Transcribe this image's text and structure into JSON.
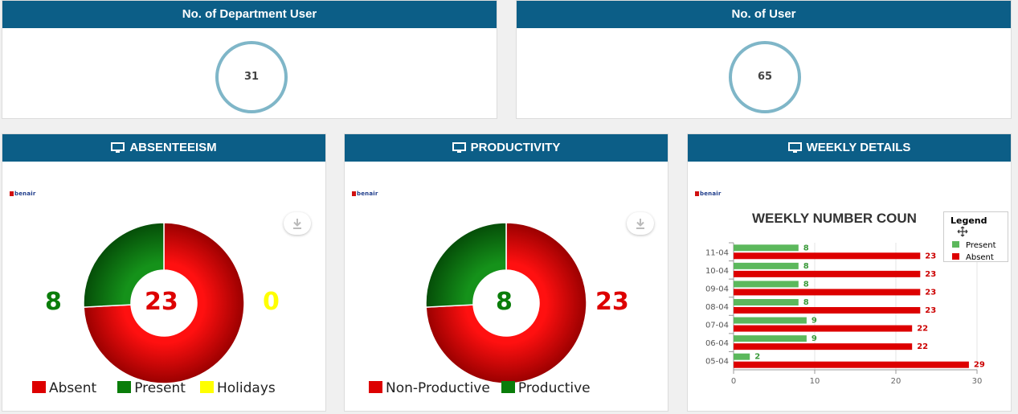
{
  "top_cards": [
    {
      "title": "No. of Department User",
      "value": "31"
    },
    {
      "title": "No. of User",
      "value": "65"
    }
  ],
  "logo_text": "benair",
  "absenteeism": {
    "title": "ABSENTEEISM",
    "left_value": "8",
    "center_value": "23",
    "right_value": "0",
    "legend": [
      {
        "label": "Absent",
        "color": "#dd0000"
      },
      {
        "label": "Present",
        "color": "#0a7d0a"
      },
      {
        "label": "Holidays",
        "color": "#ffff00"
      }
    ]
  },
  "productivity": {
    "title": "PRODUCTIVITY",
    "center_value": "8",
    "right_value": "23",
    "legend": [
      {
        "label": "Non-Productive",
        "color": "#dd0000"
      },
      {
        "label": "Productive",
        "color": "#0a7d0a"
      }
    ]
  },
  "weekly": {
    "title": "WEEKLY DETAILS",
    "chart_title": "WEEKLY NUMBER COUN",
    "legend_title": "Legend"
  },
  "chart_data": [
    {
      "type": "pie",
      "title": "ABSENTEEISM",
      "categories": [
        "Absent",
        "Present",
        "Holidays"
      ],
      "values": [
        23,
        8,
        0
      ],
      "colors": [
        "#dd0000",
        "#0a7d0a",
        "#ffff00"
      ]
    },
    {
      "type": "pie",
      "title": "PRODUCTIVITY",
      "categories": [
        "Non-Productive",
        "Productive"
      ],
      "values": [
        23,
        8
      ],
      "colors": [
        "#dd0000",
        "#0a7d0a"
      ]
    },
    {
      "type": "bar",
      "orientation": "horizontal",
      "title": "WEEKLY NUMBER COUN",
      "categories": [
        "11-04",
        "10-04",
        "09-04",
        "08-04",
        "07-04",
        "06-04",
        "05-04"
      ],
      "series": [
        {
          "name": "Present",
          "color": "#5cb85c",
          "values": [
            8,
            8,
            8,
            8,
            9,
            9,
            2
          ]
        },
        {
          "name": "Absent",
          "color": "#dd0000",
          "values": [
            23,
            23,
            23,
            23,
            22,
            22,
            29
          ]
        }
      ],
      "xlim": [
        0,
        30
      ],
      "xticks": [
        "0",
        "10",
        "20",
        "30"
      ],
      "legend_position": "top-right"
    }
  ]
}
